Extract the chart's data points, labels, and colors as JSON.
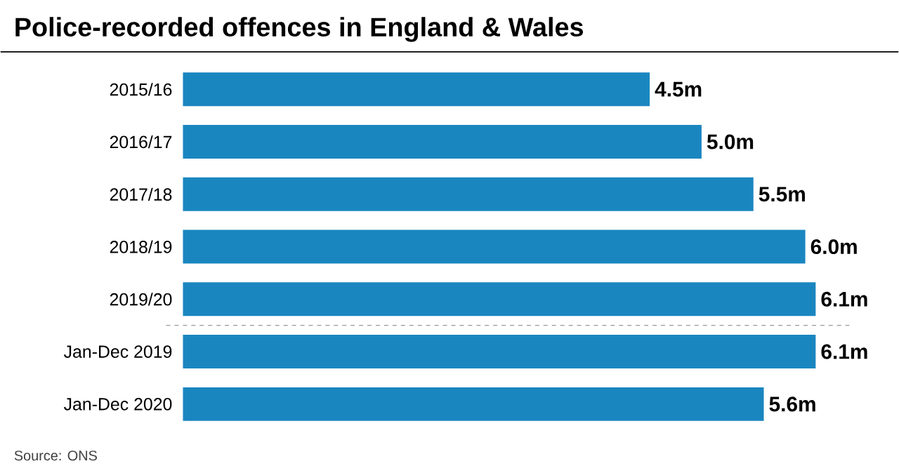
{
  "chart_data": {
    "type": "bar",
    "orientation": "horizontal",
    "title": "Police-recorded offences in England & Wales",
    "categories": [
      "2015/16",
      "2016/17",
      "2017/18",
      "2018/19",
      "2019/20",
      "Jan-Dec 2019",
      "Jan-Dec 2020"
    ],
    "values": [
      4.5,
      5.0,
      5.5,
      6.0,
      6.1,
      6.1,
      5.6
    ],
    "value_labels": [
      "4.5m",
      "5.0m",
      "5.5m",
      "6.0m",
      "6.1m",
      "6.1m",
      "5.6m"
    ],
    "color": "#1a86c0",
    "annotations": [
      "Source: ONS"
    ]
  }
}
